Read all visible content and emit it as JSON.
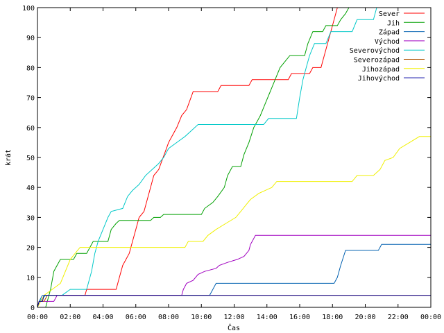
{
  "chart_data": {
    "type": "line",
    "title": "",
    "xlabel": "Čas",
    "ylabel": "krát",
    "xlim": [
      0,
      24
    ],
    "ylim": [
      0,
      100
    ],
    "x_ticks": [
      {
        "value": 0,
        "label": "00:00"
      },
      {
        "value": 2,
        "label": "02:00"
      },
      {
        "value": 4,
        "label": "04:00"
      },
      {
        "value": 6,
        "label": "06:00"
      },
      {
        "value": 8,
        "label": "08:00"
      },
      {
        "value": 10,
        "label": "10:00"
      },
      {
        "value": 12,
        "label": "12:00"
      },
      {
        "value": 14,
        "label": "14:00"
      },
      {
        "value": 16,
        "label": "16:00"
      },
      {
        "value": 18,
        "label": "18:00"
      },
      {
        "value": 20,
        "label": "20:00"
      },
      {
        "value": 22,
        "label": "22:00"
      },
      {
        "value": 24,
        "label": "00:00"
      }
    ],
    "y_ticks": [
      0,
      10,
      20,
      30,
      40,
      50,
      60,
      70,
      80,
      90,
      100
    ],
    "grid": false,
    "legend_position": "top-right",
    "series": [
      {
        "name": "Sever",
        "color": "#ff0000",
        "points": [
          [
            0,
            0
          ],
          [
            0.1,
            2
          ],
          [
            0.3,
            2
          ],
          [
            0.4,
            4
          ],
          [
            2.9,
            4
          ],
          [
            3,
            6
          ],
          [
            4.8,
            6
          ],
          [
            5,
            10
          ],
          [
            5.2,
            14
          ],
          [
            5.4,
            16
          ],
          [
            5.6,
            18
          ],
          [
            5.8,
            22
          ],
          [
            6,
            26
          ],
          [
            6.2,
            30
          ],
          [
            6.5,
            32
          ],
          [
            6.7,
            36
          ],
          [
            6.9,
            40
          ],
          [
            7.1,
            44
          ],
          [
            7.4,
            46
          ],
          [
            7.6,
            49
          ],
          [
            7.8,
            52
          ],
          [
            8,
            55
          ],
          [
            8.2,
            57
          ],
          [
            8.5,
            60
          ],
          [
            8.8,
            64
          ],
          [
            9.1,
            66
          ],
          [
            9.3,
            69
          ],
          [
            9.5,
            72
          ],
          [
            11,
            72
          ],
          [
            11.2,
            74
          ],
          [
            12.9,
            74
          ],
          [
            13.1,
            76
          ],
          [
            15.3,
            76
          ],
          [
            15.5,
            78
          ],
          [
            16.6,
            78
          ],
          [
            16.8,
            80
          ],
          [
            17.3,
            80
          ],
          [
            17.5,
            84
          ],
          [
            17.8,
            90
          ],
          [
            18.1,
            96
          ],
          [
            18.3,
            100
          ]
        ]
      },
      {
        "name": "Jih",
        "color": "#00a000",
        "points": [
          [
            0,
            0
          ],
          [
            0.5,
            0
          ],
          [
            0.8,
            6
          ],
          [
            1,
            12
          ],
          [
            1.2,
            14
          ],
          [
            1.4,
            16
          ],
          [
            2.2,
            16
          ],
          [
            2.4,
            18
          ],
          [
            3,
            18
          ],
          [
            3.2,
            20
          ],
          [
            3.4,
            22
          ],
          [
            4.3,
            22
          ],
          [
            4.5,
            26
          ],
          [
            4.8,
            28
          ],
          [
            5,
            29
          ],
          [
            6.9,
            29
          ],
          [
            7.1,
            30
          ],
          [
            7.5,
            30
          ],
          [
            7.7,
            31
          ],
          [
            10,
            31
          ],
          [
            10.2,
            33
          ],
          [
            10.7,
            35
          ],
          [
            11,
            37
          ],
          [
            11.4,
            40
          ],
          [
            11.6,
            44
          ],
          [
            11.9,
            47
          ],
          [
            12.4,
            47
          ],
          [
            12.6,
            51
          ],
          [
            12.9,
            55
          ],
          [
            13.2,
            60
          ],
          [
            13.4,
            62
          ],
          [
            13.6,
            64
          ],
          [
            13.9,
            68
          ],
          [
            14.2,
            72
          ],
          [
            14.5,
            76
          ],
          [
            14.8,
            80
          ],
          [
            15.1,
            82
          ],
          [
            15.4,
            84
          ],
          [
            16.3,
            84
          ],
          [
            16.5,
            88
          ],
          [
            16.8,
            92
          ],
          [
            17.4,
            92
          ],
          [
            17.6,
            94
          ],
          [
            18.3,
            94
          ],
          [
            18.5,
            96
          ],
          [
            18.8,
            98
          ],
          [
            19,
            100
          ]
        ]
      },
      {
        "name": "Západ",
        "color": "#0060b0",
        "points": [
          [
            0,
            0
          ],
          [
            0.1,
            2
          ],
          [
            0.3,
            4
          ],
          [
            10.5,
            4
          ],
          [
            10.7,
            6
          ],
          [
            10.9,
            8
          ],
          [
            18.1,
            8
          ],
          [
            18.3,
            10
          ],
          [
            18.5,
            14
          ],
          [
            18.8,
            19
          ],
          [
            20.8,
            19
          ],
          [
            21,
            21
          ],
          [
            24,
            21
          ]
        ]
      },
      {
        "name": "Východ",
        "color": "#a000c0",
        "points": [
          [
            0,
            0
          ],
          [
            0.1,
            2
          ],
          [
            1,
            2
          ],
          [
            1.2,
            4
          ],
          [
            8.8,
            4
          ],
          [
            8.9,
            6
          ],
          [
            9.1,
            8
          ],
          [
            9.5,
            9
          ],
          [
            9.8,
            11
          ],
          [
            10.2,
            12
          ],
          [
            10.9,
            13
          ],
          [
            11.1,
            14
          ],
          [
            11.6,
            15
          ],
          [
            12.2,
            16
          ],
          [
            12.6,
            17
          ],
          [
            12.9,
            19
          ],
          [
            13,
            21
          ],
          [
            13.1,
            22
          ],
          [
            13.3,
            24
          ],
          [
            24,
            24
          ]
        ]
      },
      {
        "name": "Severovýchod",
        "color": "#00c8c8",
        "points": [
          [
            0,
            0
          ],
          [
            0.1,
            2
          ],
          [
            0.5,
            4
          ],
          [
            1.5,
            4
          ],
          [
            2,
            6
          ],
          [
            3,
            6
          ],
          [
            3.3,
            12
          ],
          [
            3.5,
            18
          ],
          [
            3.7,
            22
          ],
          [
            4,
            26
          ],
          [
            4.3,
            30
          ],
          [
            4.5,
            32
          ],
          [
            5.2,
            33
          ],
          [
            5.5,
            37
          ],
          [
            5.8,
            39
          ],
          [
            6.2,
            41
          ],
          [
            6.6,
            44
          ],
          [
            7,
            46
          ],
          [
            7.4,
            48
          ],
          [
            7.7,
            50
          ],
          [
            8,
            53
          ],
          [
            8.5,
            55
          ],
          [
            9,
            57
          ],
          [
            9.4,
            59
          ],
          [
            9.8,
            61
          ],
          [
            13.8,
            61
          ],
          [
            14.1,
            63
          ],
          [
            15.8,
            63
          ],
          [
            16,
            70
          ],
          [
            16.2,
            76
          ],
          [
            16.4,
            80
          ],
          [
            16.6,
            84
          ],
          [
            16.9,
            88
          ],
          [
            17.6,
            88
          ],
          [
            17.9,
            92
          ],
          [
            19.2,
            92
          ],
          [
            19.5,
            96
          ],
          [
            20.5,
            96
          ],
          [
            20.7,
            100
          ]
        ]
      },
      {
        "name": "Severozápad",
        "color": "#b05000",
        "points": [
          [
            0,
            0
          ],
          [
            0.1,
            2
          ],
          [
            0.4,
            2
          ],
          [
            0.6,
            4
          ],
          [
            24,
            4
          ]
        ]
      },
      {
        "name": "Jihozápad",
        "color": "#f0f000",
        "points": [
          [
            0,
            0
          ],
          [
            0.2,
            2
          ],
          [
            0.4,
            4
          ],
          [
            0.9,
            6
          ],
          [
            1.4,
            8
          ],
          [
            1.7,
            12
          ],
          [
            2,
            16
          ],
          [
            2.3,
            18
          ],
          [
            2.6,
            20
          ],
          [
            9,
            20
          ],
          [
            9.2,
            22
          ],
          [
            10.1,
            22
          ],
          [
            10.4,
            24
          ],
          [
            10.9,
            26
          ],
          [
            11.5,
            28
          ],
          [
            12.1,
            30
          ],
          [
            12.4,
            32
          ],
          [
            12.7,
            34
          ],
          [
            13,
            36
          ],
          [
            13.5,
            38
          ],
          [
            14.3,
            40
          ],
          [
            14.6,
            42
          ],
          [
            19.2,
            42
          ],
          [
            19.5,
            44
          ],
          [
            20.5,
            44
          ],
          [
            20.9,
            46
          ],
          [
            21.2,
            49
          ],
          [
            21.7,
            50
          ],
          [
            22.1,
            53
          ],
          [
            22.7,
            55
          ],
          [
            23.3,
            57
          ],
          [
            24,
            57
          ]
        ]
      },
      {
        "name": "Jihovýchod",
        "color": "#0000a0",
        "points": [
          [
            0,
            0
          ],
          [
            0.1,
            2
          ],
          [
            0.3,
            2
          ],
          [
            0.4,
            4
          ],
          [
            24,
            4
          ]
        ]
      }
    ]
  }
}
